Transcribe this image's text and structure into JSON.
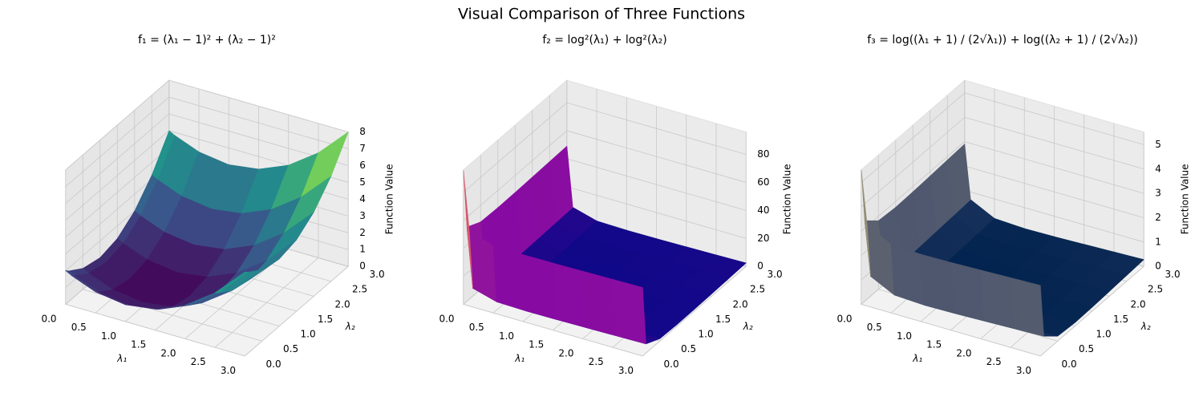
{
  "title": "Visual Comparison of Three Functions",
  "chart_data": [
    {
      "type": "surface",
      "title": "f₁ = (λ₁ − 1)² + (λ₂ − 1)²",
      "colormap": "viridis",
      "xlabel": "λ₁",
      "ylabel": "λ₂",
      "zlabel": "Function Value",
      "x": [
        0.001,
        0.1,
        0.5,
        1,
        1.5,
        2,
        2.5,
        3
      ],
      "y": [
        0.001,
        0.1,
        0.5,
        1,
        1.5,
        2,
        2.5,
        3
      ],
      "z": [
        [
          2.0,
          1.81,
          1.25,
          1.0,
          1.25,
          2.0,
          3.25,
          5.0
        ],
        [
          1.81,
          1.62,
          1.06,
          0.81,
          1.06,
          1.81,
          3.06,
          4.81
        ],
        [
          1.25,
          1.06,
          0.5,
          0.25,
          0.5,
          1.25,
          2.5,
          4.25
        ],
        [
          1.0,
          0.81,
          0.25,
          0,
          0.25,
          1.0,
          2.25,
          4.0
        ],
        [
          1.25,
          1.06,
          0.5,
          0.25,
          0.5,
          1.25,
          2.5,
          4.25
        ],
        [
          2.0,
          1.81,
          1.25,
          1.0,
          1.25,
          2.0,
          3.25,
          5.0
        ],
        [
          3.25,
          3.06,
          2.5,
          2.25,
          2.5,
          3.25,
          4.5,
          6.25
        ],
        [
          5.0,
          4.81,
          4.25,
          4.0,
          4.25,
          5.0,
          6.25,
          8.0
        ]
      ],
      "xlim": [
        0,
        3
      ],
      "ylim": [
        0,
        3
      ],
      "zlim": [
        0,
        8
      ],
      "xticks": [
        {
          "value": 0,
          "label": "0.0"
        },
        0.5,
        {
          "value": 1,
          "label": "1.0"
        },
        1.5,
        {
          "value": 2,
          "label": "2.0"
        },
        2.5,
        {
          "value": 3,
          "label": "3.0"
        }
      ],
      "yticks": [
        {
          "value": 0,
          "label": "0.0"
        },
        0.5,
        {
          "value": 1,
          "label": "1.0"
        },
        1.5,
        {
          "value": 2,
          "label": "2.0"
        },
        2.5,
        {
          "value": 3,
          "label": "3.0"
        }
      ],
      "zticks": [
        0,
        1,
        2,
        3,
        4,
        5,
        6,
        7,
        8
      ]
    },
    {
      "type": "surface",
      "title": "f₂ = log²(λ₁) + log²(λ₂)",
      "colormap": "plasma",
      "xlabel": "λ₁",
      "ylabel": "λ₂",
      "zlabel": "Function Value",
      "x": [
        0.001,
        0.1,
        0.5,
        1,
        1.5,
        2,
        2.5,
        3
      ],
      "y": [
        0.001,
        0.1,
        0.5,
        1,
        1.5,
        2,
        2.5,
        3
      ],
      "z": [
        [
          95.44,
          53.02,
          48.2,
          47.72,
          47.88,
          48.2,
          48.56,
          48.93
        ],
        [
          53.02,
          10.6,
          5.78,
          5.3,
          5.46,
          5.78,
          6.14,
          6.51
        ],
        [
          48.2,
          5.78,
          0.96,
          0.48,
          0.64,
          0.96,
          1.32,
          1.69
        ],
        [
          47.72,
          5.3,
          0.48,
          0,
          0.16,
          0.48,
          0.84,
          1.21
        ],
        [
          47.88,
          5.46,
          0.64,
          0.16,
          0.32,
          0.64,
          1.0,
          1.37
        ],
        [
          48.2,
          5.78,
          0.96,
          0.48,
          0.64,
          0.96,
          1.32,
          1.69
        ],
        [
          48.56,
          6.14,
          1.32,
          0.84,
          1.0,
          1.32,
          1.68,
          2.05
        ],
        [
          48.93,
          6.51,
          1.69,
          1.21,
          1.37,
          1.69,
          2.05,
          2.42
        ]
      ],
      "xlim": [
        0,
        3
      ],
      "ylim": [
        0,
        3
      ],
      "zlim": [
        0,
        96
      ],
      "xticks": [
        {
          "value": 0,
          "label": "0.0"
        },
        0.5,
        {
          "value": 1,
          "label": "1.0"
        },
        1.5,
        {
          "value": 2,
          "label": "2.0"
        },
        2.5,
        {
          "value": 3,
          "label": "3.0"
        }
      ],
      "yticks": [
        {
          "value": 0,
          "label": "0.0"
        },
        0.5,
        {
          "value": 1,
          "label": "1.0"
        },
        1.5,
        {
          "value": 2,
          "label": "2.0"
        },
        2.5,
        {
          "value": 3,
          "label": "3.0"
        }
      ],
      "zticks": [
        0,
        20,
        40,
        60,
        80
      ]
    },
    {
      "type": "surface",
      "title": "f₃ = log((λ₁ + 1) / (2√λ₁)) + log((λ₂ + 1) / (2√λ₂))",
      "colormap": "cividis",
      "xlabel": "λ₁",
      "ylabel": "λ₂",
      "zlabel": "Function Value",
      "x": [
        0.001,
        0.1,
        0.5,
        1,
        1.5,
        2,
        2.5,
        3
      ],
      "y": [
        0.001,
        0.1,
        0.5,
        1,
        1.5,
        2,
        2.5,
        3
      ],
      "z": [
        [
          5.52,
          3.31,
          2.82,
          2.76,
          2.78,
          2.82,
          2.86,
          2.9
        ],
        [
          3.31,
          1.1,
          0.61,
          0.55,
          0.57,
          0.61,
          0.65,
          0.69
        ],
        [
          2.82,
          0.61,
          0.12,
          0.06,
          0.08,
          0.12,
          0.16,
          0.2
        ],
        [
          2.76,
          0.55,
          0.06,
          0,
          0.02,
          0.06,
          0.1,
          0.14
        ],
        [
          2.78,
          0.57,
          0.08,
          0.02,
          0.04,
          0.08,
          0.12,
          0.16
        ],
        [
          2.82,
          0.61,
          0.12,
          0.06,
          0.08,
          0.12,
          0.16,
          0.2
        ],
        [
          2.86,
          0.65,
          0.16,
          0.1,
          0.12,
          0.16,
          0.2,
          0.24
        ],
        [
          2.9,
          0.69,
          0.2,
          0.14,
          0.16,
          0.2,
          0.24,
          0.28
        ]
      ],
      "xlim": [
        0,
        3
      ],
      "ylim": [
        0,
        3
      ],
      "zlim": [
        0,
        5.52
      ],
      "xticks": [
        {
          "value": 0,
          "label": "0.0"
        },
        0.5,
        {
          "value": 1,
          "label": "1.0"
        },
        1.5,
        {
          "value": 2,
          "label": "2.0"
        },
        2.5,
        {
          "value": 3,
          "label": "3.0"
        }
      ],
      "yticks": [
        {
          "value": 0,
          "label": "0.0"
        },
        0.5,
        {
          "value": 1,
          "label": "1.0"
        },
        1.5,
        {
          "value": 2,
          "label": "2.0"
        },
        2.5,
        {
          "value": 3,
          "label": "3.0"
        }
      ],
      "zticks": [
        0,
        1,
        2,
        3,
        4,
        5
      ]
    }
  ]
}
